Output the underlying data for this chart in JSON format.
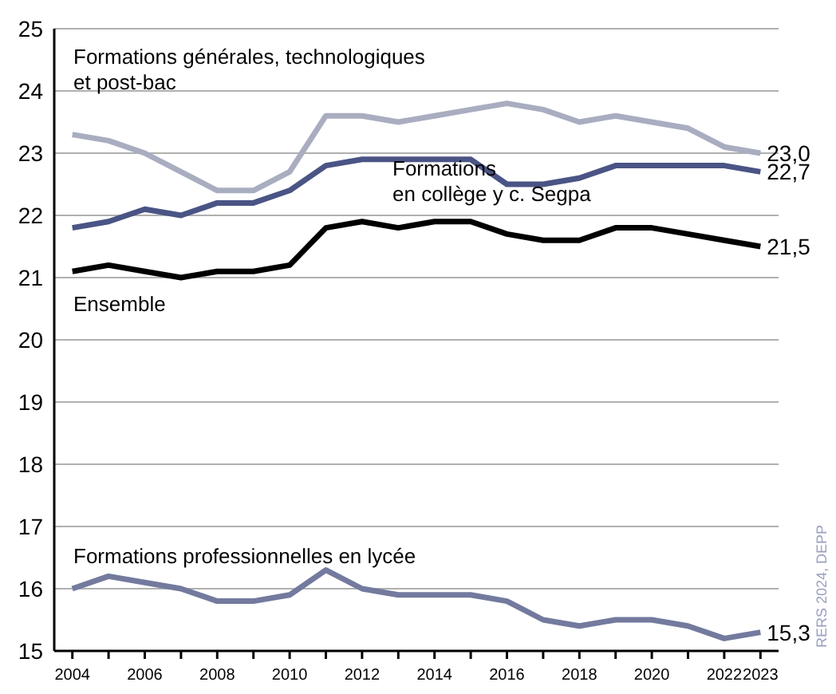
{
  "chart_data": {
    "type": "line",
    "x": [
      2004,
      2005,
      2006,
      2007,
      2008,
      2009,
      2010,
      2011,
      2012,
      2013,
      2014,
      2015,
      2016,
      2017,
      2018,
      2019,
      2020,
      2021,
      2022,
      2023
    ],
    "series": [
      {
        "name": "Formations générales, technologiques\net post-bac",
        "color": "#a9adc0",
        "values": [
          23.3,
          23.2,
          23.0,
          22.7,
          22.4,
          22.4,
          22.7,
          23.6,
          23.6,
          23.5,
          23.6,
          23.7,
          23.8,
          23.7,
          23.5,
          23.6,
          23.5,
          23.4,
          23.1,
          23.0
        ],
        "value_labels": [
          null,
          null,
          null,
          null,
          null,
          null,
          null,
          null,
          null,
          null,
          null,
          null,
          null,
          null,
          null,
          null,
          null,
          null,
          null,
          "23,0"
        ]
      },
      {
        "name": "Formations\nen collège y c. Segpa",
        "color": "#4a5485",
        "values": [
          21.8,
          21.9,
          22.1,
          22.0,
          22.2,
          22.2,
          22.4,
          22.8,
          22.9,
          22.9,
          22.9,
          22.9,
          22.5,
          22.5,
          22.6,
          22.8,
          22.8,
          22.8,
          22.8,
          22.7
        ],
        "value_labels": [
          null,
          null,
          null,
          null,
          null,
          null,
          null,
          null,
          null,
          null,
          null,
          null,
          null,
          null,
          null,
          null,
          null,
          null,
          null,
          "22,7"
        ]
      },
      {
        "name": "Ensemble",
        "color": "#000000",
        "values": [
          21.1,
          21.2,
          21.1,
          21.0,
          21.1,
          21.1,
          21.2,
          21.8,
          21.9,
          21.8,
          21.9,
          21.9,
          21.7,
          21.6,
          21.6,
          21.8,
          21.8,
          21.7,
          21.6,
          21.5
        ],
        "value_labels": [
          null,
          null,
          null,
          null,
          null,
          null,
          null,
          null,
          null,
          null,
          null,
          null,
          null,
          null,
          null,
          null,
          null,
          null,
          null,
          "21,5"
        ]
      },
      {
        "name": "Formations professionnelles en lycée",
        "color": "#737a9e",
        "values": [
          16.0,
          16.2,
          16.1,
          16.0,
          15.8,
          15.8,
          15.9,
          16.3,
          16.0,
          15.9,
          15.9,
          15.9,
          15.8,
          15.5,
          15.4,
          15.5,
          15.5,
          15.4,
          15.2,
          15.3
        ],
        "value_labels": [
          null,
          null,
          null,
          null,
          null,
          null,
          null,
          null,
          null,
          null,
          null,
          null,
          null,
          null,
          null,
          null,
          null,
          null,
          null,
          "15,3"
        ]
      }
    ],
    "xlim": [
      2003.5,
      2023.5
    ],
    "xticks": [
      2004,
      {
        "value": 2005,
        "label": null
      },
      2006,
      {
        "value": 2007,
        "label": null
      },
      2008,
      {
        "value": 2009,
        "label": null
      },
      2010,
      {
        "value": 2011,
        "label": null
      },
      2012,
      {
        "value": 2013,
        "label": null
      },
      2014,
      {
        "value": 2015,
        "label": null
      },
      2016,
      {
        "value": 2017,
        "label": null
      },
      2018,
      {
        "value": 2019,
        "label": null
      },
      2020,
      {
        "value": 2021,
        "label": null
      },
      2022,
      2023
    ],
    "ylim": [
      15,
      25
    ],
    "yticks": [
      15,
      16,
      17,
      18,
      19,
      20,
      21,
      22,
      23,
      24,
      25
    ],
    "grid": "y",
    "marker": "none",
    "line_style": "solid",
    "annotations": [
      "RERS 2024, DEPP"
    ]
  }
}
